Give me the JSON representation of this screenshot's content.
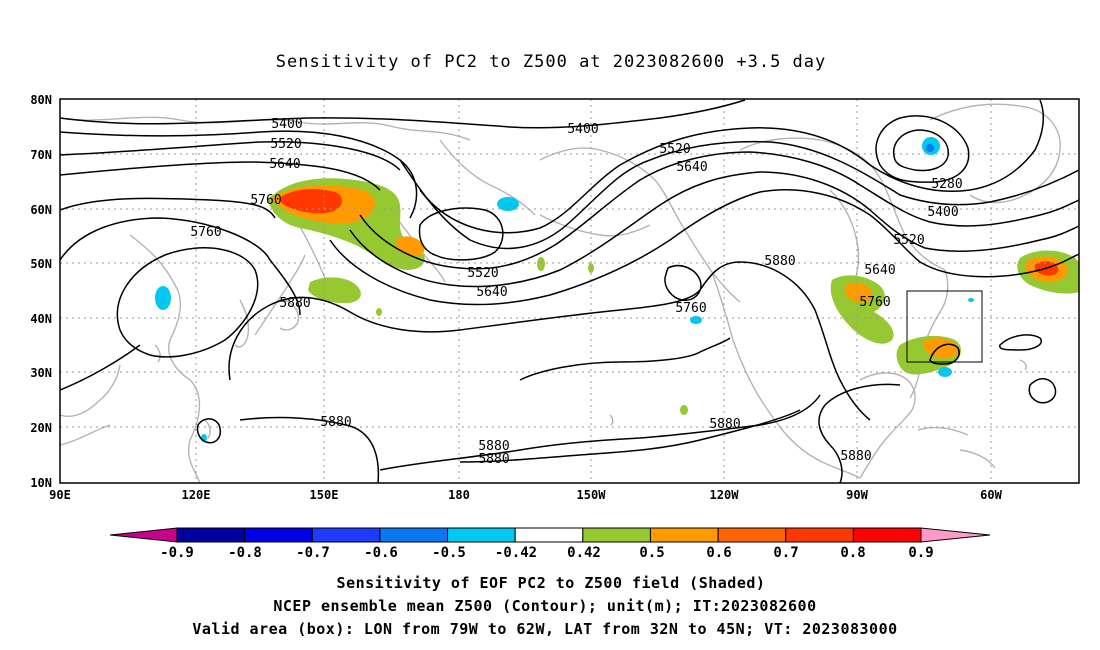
{
  "title": "Sensitivity of PC2 to Z500 at 2023082600 +3.5 day",
  "map": {
    "lat_ticks": [
      "80N",
      "70N",
      "60N",
      "50N",
      "40N",
      "30N",
      "20N",
      "10N"
    ],
    "lon_ticks": [
      "90E",
      "120E",
      "150E",
      "180",
      "150W",
      "120W",
      "90W",
      "60W"
    ],
    "contour_labels": [
      {
        "text": "5400",
        "id": "c5400-a"
      },
      {
        "text": "5520",
        "id": "c5520-a"
      },
      {
        "text": "5640",
        "id": "c5640-a"
      },
      {
        "text": "5760",
        "id": "c5760-a"
      },
      {
        "text": "5760",
        "id": "c5760-b"
      },
      {
        "text": "5880",
        "id": "c5880-a"
      },
      {
        "text": "5880",
        "id": "c5880-b"
      },
      {
        "text": "5400",
        "id": "c5400-b"
      },
      {
        "text": "5520",
        "id": "c5520-b"
      },
      {
        "text": "5640",
        "id": "c5640-b"
      },
      {
        "text": "5520",
        "id": "c5520-c"
      },
      {
        "text": "5640",
        "id": "c5640-c"
      },
      {
        "text": "5880",
        "id": "c5880-c"
      },
      {
        "text": "5880",
        "id": "c5880-d"
      },
      {
        "text": "5880",
        "id": "c5880-e"
      },
      {
        "text": "5760",
        "id": "c5760-c"
      },
      {
        "text": "5880",
        "id": "c5880-f"
      },
      {
        "text": "5880",
        "id": "c5880-g"
      },
      {
        "text": "5280",
        "id": "c5280-a"
      },
      {
        "text": "5400",
        "id": "c5400-c"
      },
      {
        "text": "5520",
        "id": "c5520-d"
      },
      {
        "text": "5640",
        "id": "c5640-d"
      },
      {
        "text": "5760",
        "id": "c5760-d"
      }
    ],
    "box": {
      "lon_from": "79W",
      "lon_to": "62W",
      "lat_from": "32N",
      "lat_to": "45N"
    }
  },
  "colorbar": {
    "labels": [
      "-0.9",
      "-0.8",
      "-0.7",
      "-0.6",
      "-0.5",
      "-0.42",
      "0.42",
      "0.5",
      "0.6",
      "0.7",
      "0.8",
      "0.9"
    ],
    "colors": [
      "#0000a0",
      "#0000e6",
      "#1e3cff",
      "#0a78f0",
      "#00c8f0",
      "#ffffff",
      "#96c832",
      "#ff9b00",
      "#ff6400",
      "#ff3700",
      "#ff0000"
    ],
    "left_arrow_color": "#c8008c",
    "right_arrow_color": "#ff9bc8"
  },
  "footer": {
    "line1": "Sensitivity of EOF PC2 to Z500 field (Shaded)",
    "line2": "NCEP ensemble mean Z500 (Contour); unit(m); IT:2023082600",
    "line3": "Valid area (box): LON from 79W to 62W, LAT from 32N to 45N; VT: 2023083000"
  },
  "colors": {
    "coastline": "#b4b4b4",
    "contour": "#000000",
    "grid": "#9a9a9a",
    "positive_green": "#96c832",
    "positive_orange": "#ff9b00",
    "positive_red": "#ff3700",
    "negative_cyan": "#00c8f0"
  }
}
